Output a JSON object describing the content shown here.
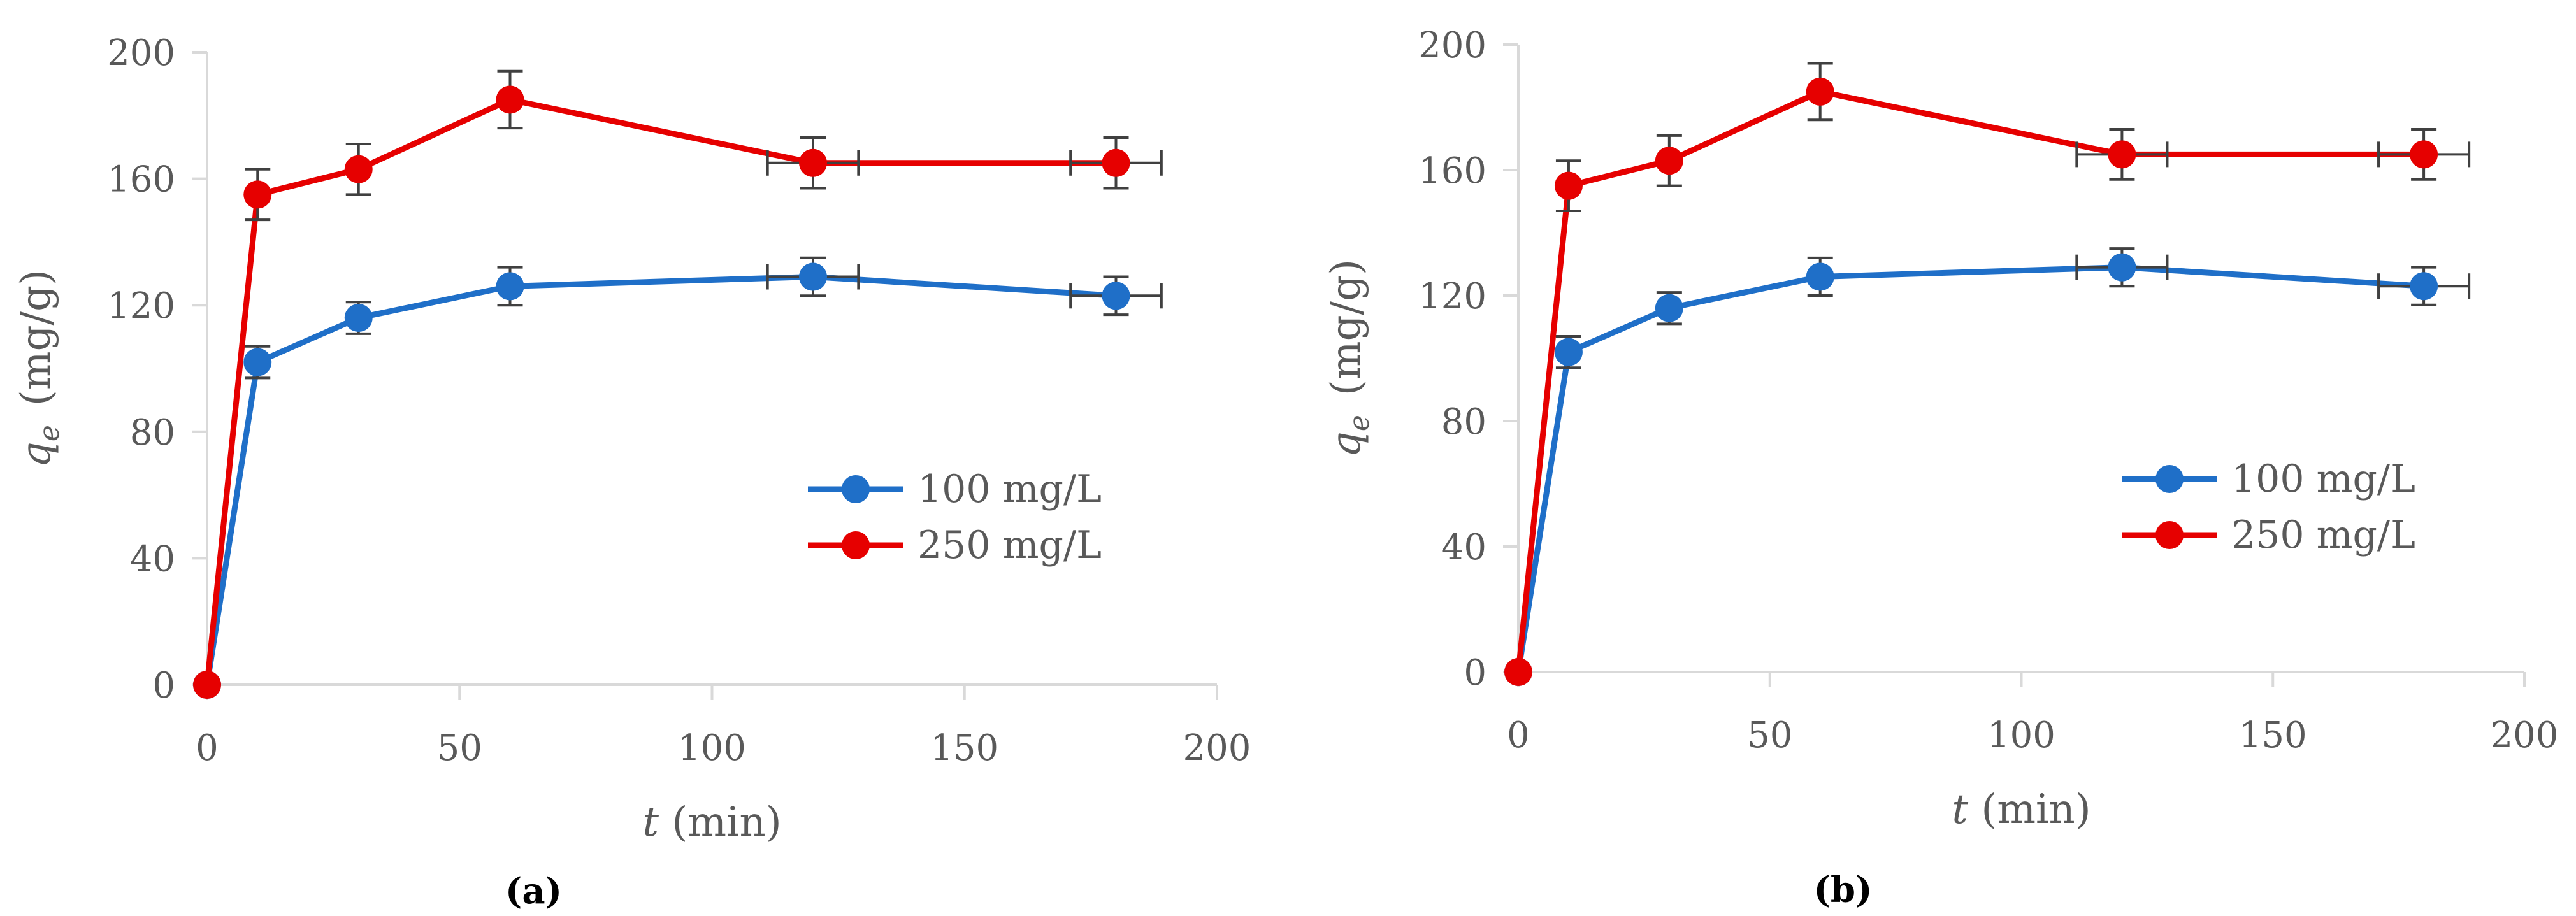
{
  "chart_data": [
    {
      "type": "line",
      "panel_label": "(a)",
      "xlabel_italic": "t",
      "xlabel_rest": " (min)",
      "ylabel_italic": "q",
      "ylabel_sub": "e",
      "ylabel_rest": "(mg/g)",
      "xlim": [
        0,
        200
      ],
      "ylim": [
        0,
        200
      ],
      "xticks": [
        0,
        50,
        100,
        150,
        200
      ],
      "yticks": [
        0,
        40,
        80,
        120,
        160,
        200
      ],
      "grid": false,
      "legend_position": "center-right",
      "series": [
        {
          "name": "100 mg/L",
          "color": "#1f6fc8",
          "x": [
            0,
            10,
            30,
            60,
            120,
            180
          ],
          "y": [
            0,
            102,
            116,
            126,
            129,
            123
          ],
          "yerr": [
            0,
            5,
            5,
            6,
            6,
            6
          ],
          "xerr": [
            0,
            0,
            0,
            0,
            9,
            9
          ]
        },
        {
          "name": "250 mg/L",
          "color": "#e60000",
          "x": [
            0,
            10,
            30,
            60,
            120,
            180
          ],
          "y": [
            0,
            155,
            163,
            185,
            165,
            165
          ],
          "yerr": [
            0,
            8,
            8,
            9,
            8,
            8
          ],
          "xerr": [
            0,
            0,
            0,
            0,
            9,
            9
          ]
        }
      ]
    },
    {
      "type": "line",
      "panel_label": "(b)",
      "xlabel_italic": "t",
      "xlabel_rest": " (min)",
      "ylabel_italic": "q",
      "ylabel_sub": "e",
      "ylabel_rest": "(mg/g)",
      "xlim": [
        0,
        200
      ],
      "ylim": [
        0,
        200
      ],
      "xticks": [
        0,
        50,
        100,
        150,
        200
      ],
      "yticks": [
        0,
        40,
        80,
        120,
        160,
        200
      ],
      "grid": false,
      "legend_position": "center-right",
      "series": [
        {
          "name": "100 mg/L",
          "color": "#1f6fc8",
          "x": [
            0,
            10,
            30,
            60,
            120,
            180
          ],
          "y": [
            0,
            102,
            116,
            126,
            129,
            123
          ],
          "yerr": [
            0,
            5,
            5,
            6,
            6,
            6
          ],
          "xerr": [
            0,
            0,
            0,
            0,
            9,
            9
          ]
        },
        {
          "name": "250 mg/L",
          "color": "#e60000",
          "x": [
            0,
            10,
            30,
            60,
            120,
            180
          ],
          "y": [
            0,
            155,
            163,
            185,
            165,
            165
          ],
          "yerr": [
            0,
            8,
            8,
            9,
            8,
            8
          ],
          "xerr": [
            0,
            0,
            0,
            0,
            9,
            9
          ]
        }
      ]
    }
  ]
}
